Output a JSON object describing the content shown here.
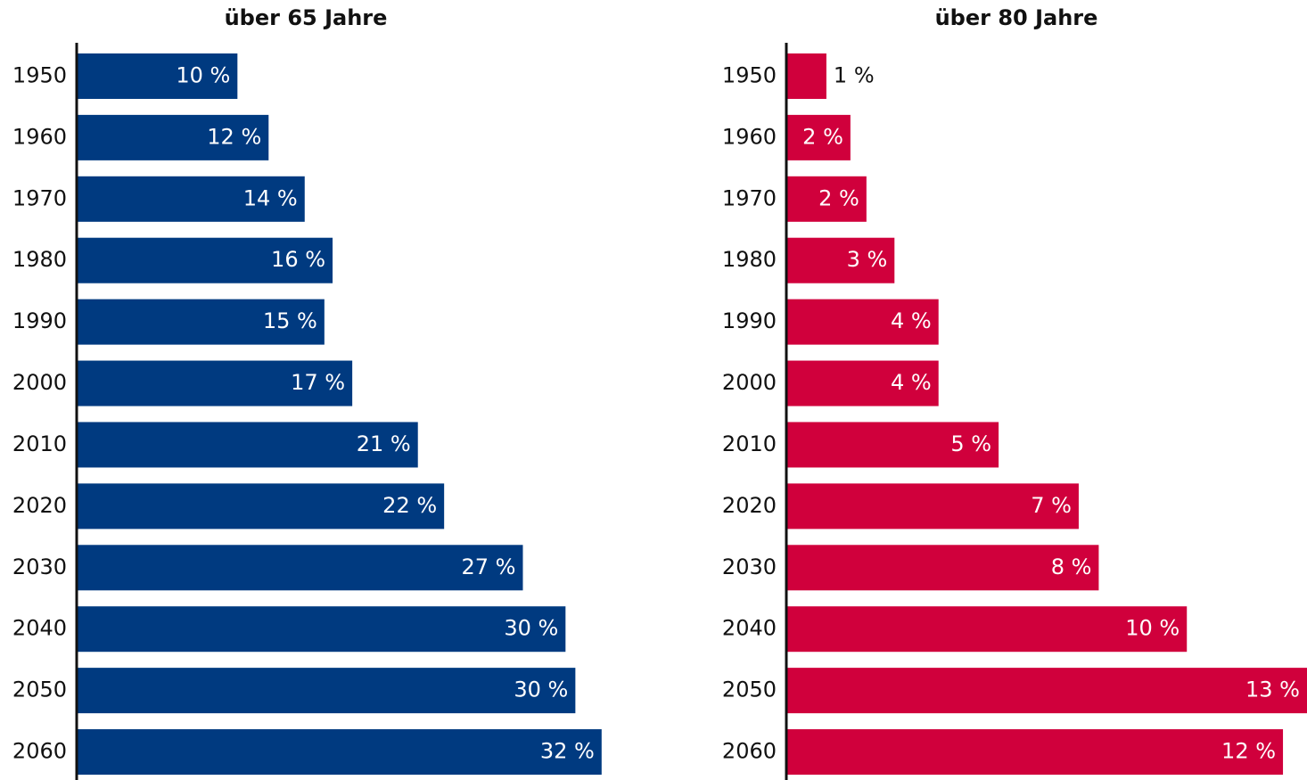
{
  "chart_data": [
    {
      "type": "bar",
      "orientation": "horizontal",
      "title": "über 65 Jahre",
      "categories": [
        "1950",
        "1960",
        "1970",
        "1980",
        "1990",
        "2000",
        "2010",
        "2020",
        "2030",
        "2040",
        "2050",
        "2060"
      ],
      "values": [
        9.8,
        11.7,
        13.9,
        15.6,
        15.1,
        16.8,
        20.8,
        22.4,
        27.2,
        29.8,
        30.4,
        32.0
      ],
      "value_labels": [
        "10 %",
        "12 %",
        "14 %",
        "16 %",
        "15 %",
        "17 %",
        "21 %",
        "22 %",
        "27 %",
        "30 %",
        "30 %",
        "32 %"
      ],
      "color": "#003a80",
      "xlim": [
        0,
        40
      ]
    },
    {
      "type": "bar",
      "orientation": "horizontal",
      "title": "über 80 Jahre",
      "categories": [
        "1950",
        "1960",
        "1970",
        "1980",
        "1990",
        "2000",
        "2010",
        "2020",
        "2030",
        "2040",
        "2050",
        "2060"
      ],
      "values": [
        1.0,
        1.6,
        2.0,
        2.7,
        3.8,
        3.8,
        5.3,
        7.3,
        7.8,
        10.0,
        13.0,
        12.4
      ],
      "value_labels": [
        "1 %",
        "2 %",
        "2 %",
        "3 %",
        "4 %",
        "4 %",
        "5 %",
        "7 %",
        "8 %",
        "10 %",
        "13 %",
        "12 %"
      ],
      "color": "#d0003c",
      "xlim": [
        0,
        13
      ]
    }
  ]
}
